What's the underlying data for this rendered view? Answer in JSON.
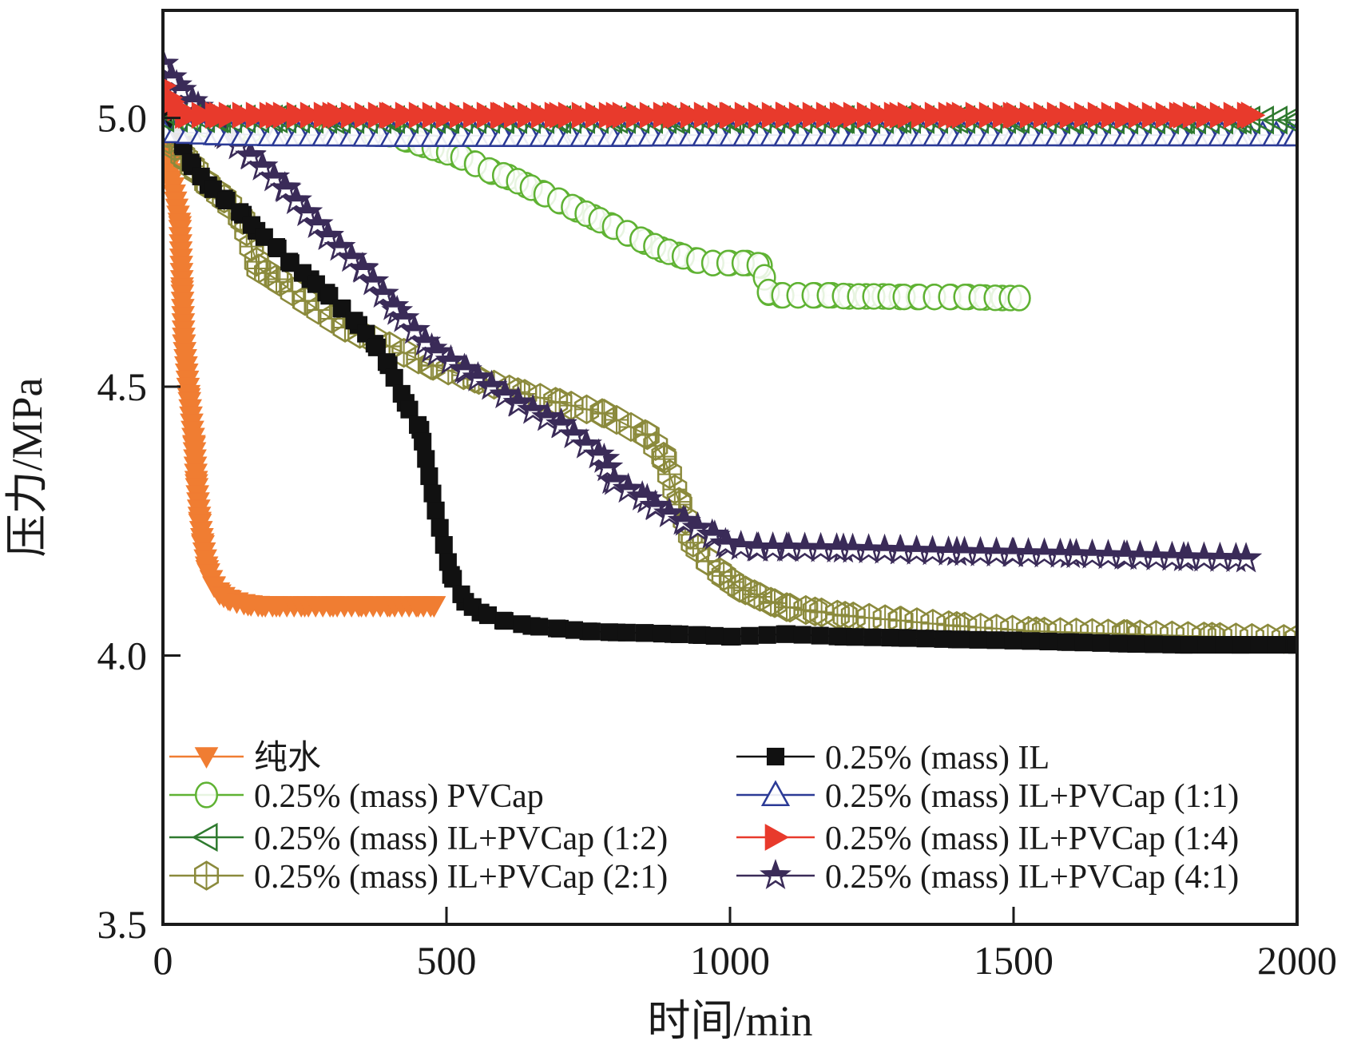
{
  "chart_data": {
    "type": "line",
    "title": "",
    "xlabel": "时间/min",
    "ylabel": "压力/MPa",
    "xlim": [
      0,
      2000
    ],
    "ylim": [
      3.5,
      5.2
    ],
    "xticks": [
      0,
      500,
      1000,
      1500,
      2000
    ],
    "xtick_labels": [
      "0",
      "500",
      "1000",
      "1500",
      "2000"
    ],
    "yticks": [
      3.5,
      4.0,
      4.5,
      5.0
    ],
    "ytick_labels": [
      "3.5",
      "4.0",
      "4.5",
      "5.0"
    ],
    "grid": false,
    "legend_position": "bottom (inside plot, two columns)",
    "series": [
      {
        "name": "纯水",
        "color": "#f07d32",
        "marker": "triangle-down-filled",
        "x": [
          0,
          11,
          30,
          34,
          37,
          46,
          55,
          59,
          65,
          70,
          78,
          90,
          100,
          115,
          130,
          150,
          175,
          200,
          250,
          300,
          350,
          400,
          450,
          478
        ],
        "y": [
          4.95,
          4.91,
          4.8,
          4.68,
          4.58,
          4.48,
          4.39,
          4.32,
          4.25,
          4.21,
          4.16,
          4.13,
          4.115,
          4.105,
          4.1,
          4.095,
          4.093,
          4.093,
          4.093,
          4.093,
          4.093,
          4.093,
          4.093,
          4.093
        ]
      },
      {
        "name": "0.25% (mass) PVCap",
        "color": "#5fb233",
        "marker": "circle-open",
        "x": [
          0,
          50,
          100,
          150,
          200,
          250,
          300,
          350,
          400,
          430,
          460,
          490,
          520,
          550,
          580,
          610,
          640,
          670,
          700,
          730,
          760,
          790,
          820,
          850,
          880,
          910,
          940,
          970,
          1000,
          1030,
          1055,
          1068,
          1090,
          1120,
          1150,
          1180,
          1210,
          1240,
          1270,
          1300,
          1330,
          1360,
          1390,
          1420,
          1450,
          1480,
          1510
        ],
        "y": [
          5.0,
          4.99,
          4.985,
          4.98,
          4.978,
          4.975,
          4.973,
          4.972,
          4.97,
          4.96,
          4.95,
          4.94,
          4.93,
          4.915,
          4.9,
          4.89,
          4.875,
          4.86,
          4.845,
          4.83,
          4.815,
          4.8,
          4.785,
          4.77,
          4.755,
          4.745,
          4.735,
          4.73,
          4.73,
          4.73,
          4.725,
          4.675,
          4.67,
          4.67,
          4.67,
          4.67,
          4.668,
          4.668,
          4.668,
          4.667,
          4.667,
          4.667,
          4.667,
          4.667,
          4.666,
          4.665,
          4.665
        ]
      },
      {
        "name": "0.25% (mass) IL+PVCap (1:2)",
        "color": "#2f7a2f",
        "marker": "triangle-left-open",
        "x": [
          0,
          100,
          200,
          300,
          400,
          500,
          600,
          700,
          800,
          900,
          1000,
          1100,
          1200,
          1300,
          1400,
          1500,
          1600,
          1700,
          1800,
          1900,
          2000
        ],
        "y": [
          5.0,
          4.998,
          4.998,
          4.997,
          4.997,
          4.997,
          4.997,
          4.997,
          4.997,
          4.997,
          4.997,
          4.997,
          4.997,
          4.997,
          4.997,
          4.997,
          4.996,
          4.996,
          4.996,
          4.996,
          4.996
        ]
      },
      {
        "name": "0.25% (mass) IL+PVCap (2:1)",
        "color": "#8b8a3c",
        "marker": "hexagon-cross-open",
        "x": [
          0,
          11,
          35,
          52,
          80,
          108,
          141,
          169,
          200,
          250,
          321,
          400,
          473,
          550,
          626,
          700,
          778,
          854,
          883,
          910,
          935,
          962,
          989,
          1017,
          1043,
          1072,
          1100,
          1150,
          1203,
          1300,
          1400,
          1540,
          1700,
          1850,
          2000
        ],
        "y": [
          5.0,
          4.96,
          4.93,
          4.91,
          4.875,
          4.85,
          4.81,
          4.72,
          4.7,
          4.66,
          4.61,
          4.575,
          4.54,
          4.515,
          4.49,
          4.47,
          4.45,
          4.41,
          4.37,
          4.286,
          4.21,
          4.175,
          4.148,
          4.126,
          4.114,
          4.1,
          4.09,
          4.082,
          4.074,
          4.065,
          4.055,
          4.045,
          4.04,
          4.035,
          4.03
        ]
      },
      {
        "name": "0.25% (mass) IL",
        "color": "#111111",
        "marker": "square-filled",
        "x": [
          0,
          35,
          52,
          80,
          108,
          141,
          165,
          200,
          225,
          260,
          288,
          316,
          345,
          373,
          398,
          428,
          454,
          481,
          508,
          533,
          560,
          600,
          650,
          700,
          750,
          800,
          850,
          900,
          950,
          1000,
          1100,
          1200,
          1300,
          1400,
          1500,
          1600,
          1700,
          1800,
          1900,
          2000
        ],
        "y": [
          5.0,
          4.95,
          4.91,
          4.875,
          4.85,
          4.82,
          4.79,
          4.76,
          4.73,
          4.7,
          4.675,
          4.645,
          4.615,
          4.58,
          4.54,
          4.47,
          4.42,
          4.27,
          4.15,
          4.1,
          4.08,
          4.065,
          4.055,
          4.05,
          4.045,
          4.043,
          4.042,
          4.04,
          4.038,
          4.035,
          4.04,
          4.035,
          4.033,
          4.03,
          4.028,
          4.025,
          4.022,
          4.02,
          4.02,
          4.02
        ]
      },
      {
        "name": "0.25% (mass) IL+PVCap (1:1)",
        "color": "#2b3a96",
        "marker": "triangle-up-open",
        "x": [
          0,
          100,
          200,
          300,
          400,
          500,
          600,
          700,
          800,
          900,
          1000,
          1100,
          1200,
          1300,
          1400,
          1500,
          1600,
          1700,
          1800,
          1900,
          2000
        ],
        "y": [
          4.975,
          4.97,
          4.968,
          4.968,
          4.967,
          4.967,
          4.967,
          4.967,
          4.967,
          4.968,
          4.968,
          4.968,
          4.968,
          4.968,
          4.968,
          4.968,
          4.968,
          4.968,
          4.968,
          4.968,
          4.968
        ]
      },
      {
        "name": "0.25% (mass) IL+PVCap (1:4)",
        "color": "#e83a2c",
        "marker": "triangle-right-filled",
        "x": [
          0,
          15,
          40,
          100,
          200,
          300,
          400,
          500,
          600,
          700,
          800,
          900,
          1000,
          1100,
          1200,
          1300,
          1400,
          1500,
          1600,
          1700,
          1800,
          1920
        ],
        "y": [
          5.06,
          5.03,
          5.005,
          5.005,
          5.005,
          5.005,
          5.005,
          5.005,
          5.005,
          5.005,
          5.005,
          5.005,
          5.005,
          5.005,
          5.005,
          5.005,
          5.005,
          5.005,
          5.005,
          5.005,
          5.005,
          5.005
        ]
      },
      {
        "name": "0.25% (mass) IL+PVCap (4:1)",
        "color": "#3a2b58",
        "marker": "star-half",
        "x": [
          0,
          24,
          62,
          108,
          154,
          215,
          291,
          352,
          413,
          474,
          535,
          626,
          702,
          778,
          792,
          854,
          869,
          921,
          973,
          996,
          1050,
          1100,
          1200,
          1300,
          1400,
          1500,
          1600,
          1700,
          1800,
          1910
        ],
        "y": [
          5.1,
          5.06,
          5.02,
          4.97,
          4.93,
          4.87,
          4.78,
          4.72,
          4.64,
          4.57,
          4.53,
          4.47,
          4.43,
          4.365,
          4.326,
          4.29,
          4.277,
          4.248,
          4.222,
          4.205,
          4.2,
          4.2,
          4.198,
          4.195,
          4.192,
          4.19,
          4.188,
          4.185,
          4.182,
          4.18
        ]
      }
    ],
    "legend": {
      "left_column": [
        "纯水",
        "0.25% (mass) PVCap",
        "0.25% (mass) IL+PVCap (1:2)",
        "0.25% (mass) IL+PVCap (2:1)"
      ],
      "right_column": [
        "0.25% (mass) IL",
        "0.25% (mass) IL+PVCap (1:1)",
        "0.25% (mass) IL+PVCap (1:4)",
        "0.25% (mass) IL+PVCap (4:1)"
      ]
    }
  }
}
